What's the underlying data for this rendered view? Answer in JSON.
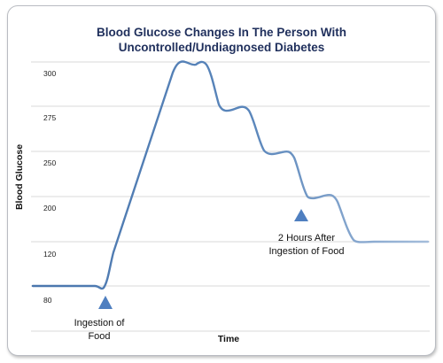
{
  "chart_data": {
    "type": "line",
    "title_lines": [
      "Blood Glucose Changes In The Person With",
      "Uncontrolled/Undiagnosed Diabetes"
    ],
    "xlabel": "Time",
    "ylabel": "Blood Glucose",
    "y_ticks": [
      "300",
      "275",
      "250",
      "200",
      "120",
      "80"
    ],
    "grid": true,
    "series": [
      {
        "color": "#4a76ad",
        "color_end": "#a4bddb"
      }
    ],
    "annotations": [
      {
        "lines": [
          "Ingestion of",
          "Food"
        ],
        "marker": "triangle-up"
      },
      {
        "lines": [
          "2 Hours After",
          "Ingestion of Food"
        ],
        "marker": "triangle-up"
      }
    ],
    "marker_color": "#4f7fc0"
  }
}
